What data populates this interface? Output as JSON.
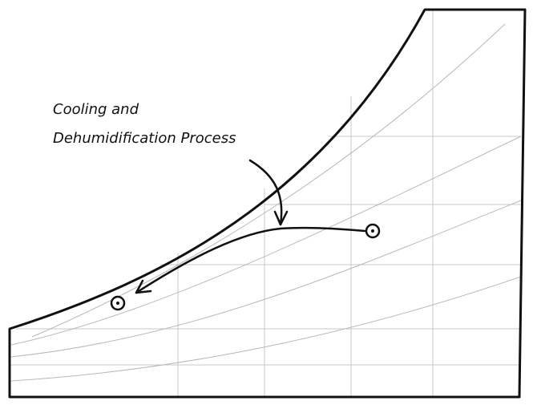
{
  "annotation": {
    "lines": [
      "Cooling and",
      "Dehumidification Process"
    ]
  }
}
